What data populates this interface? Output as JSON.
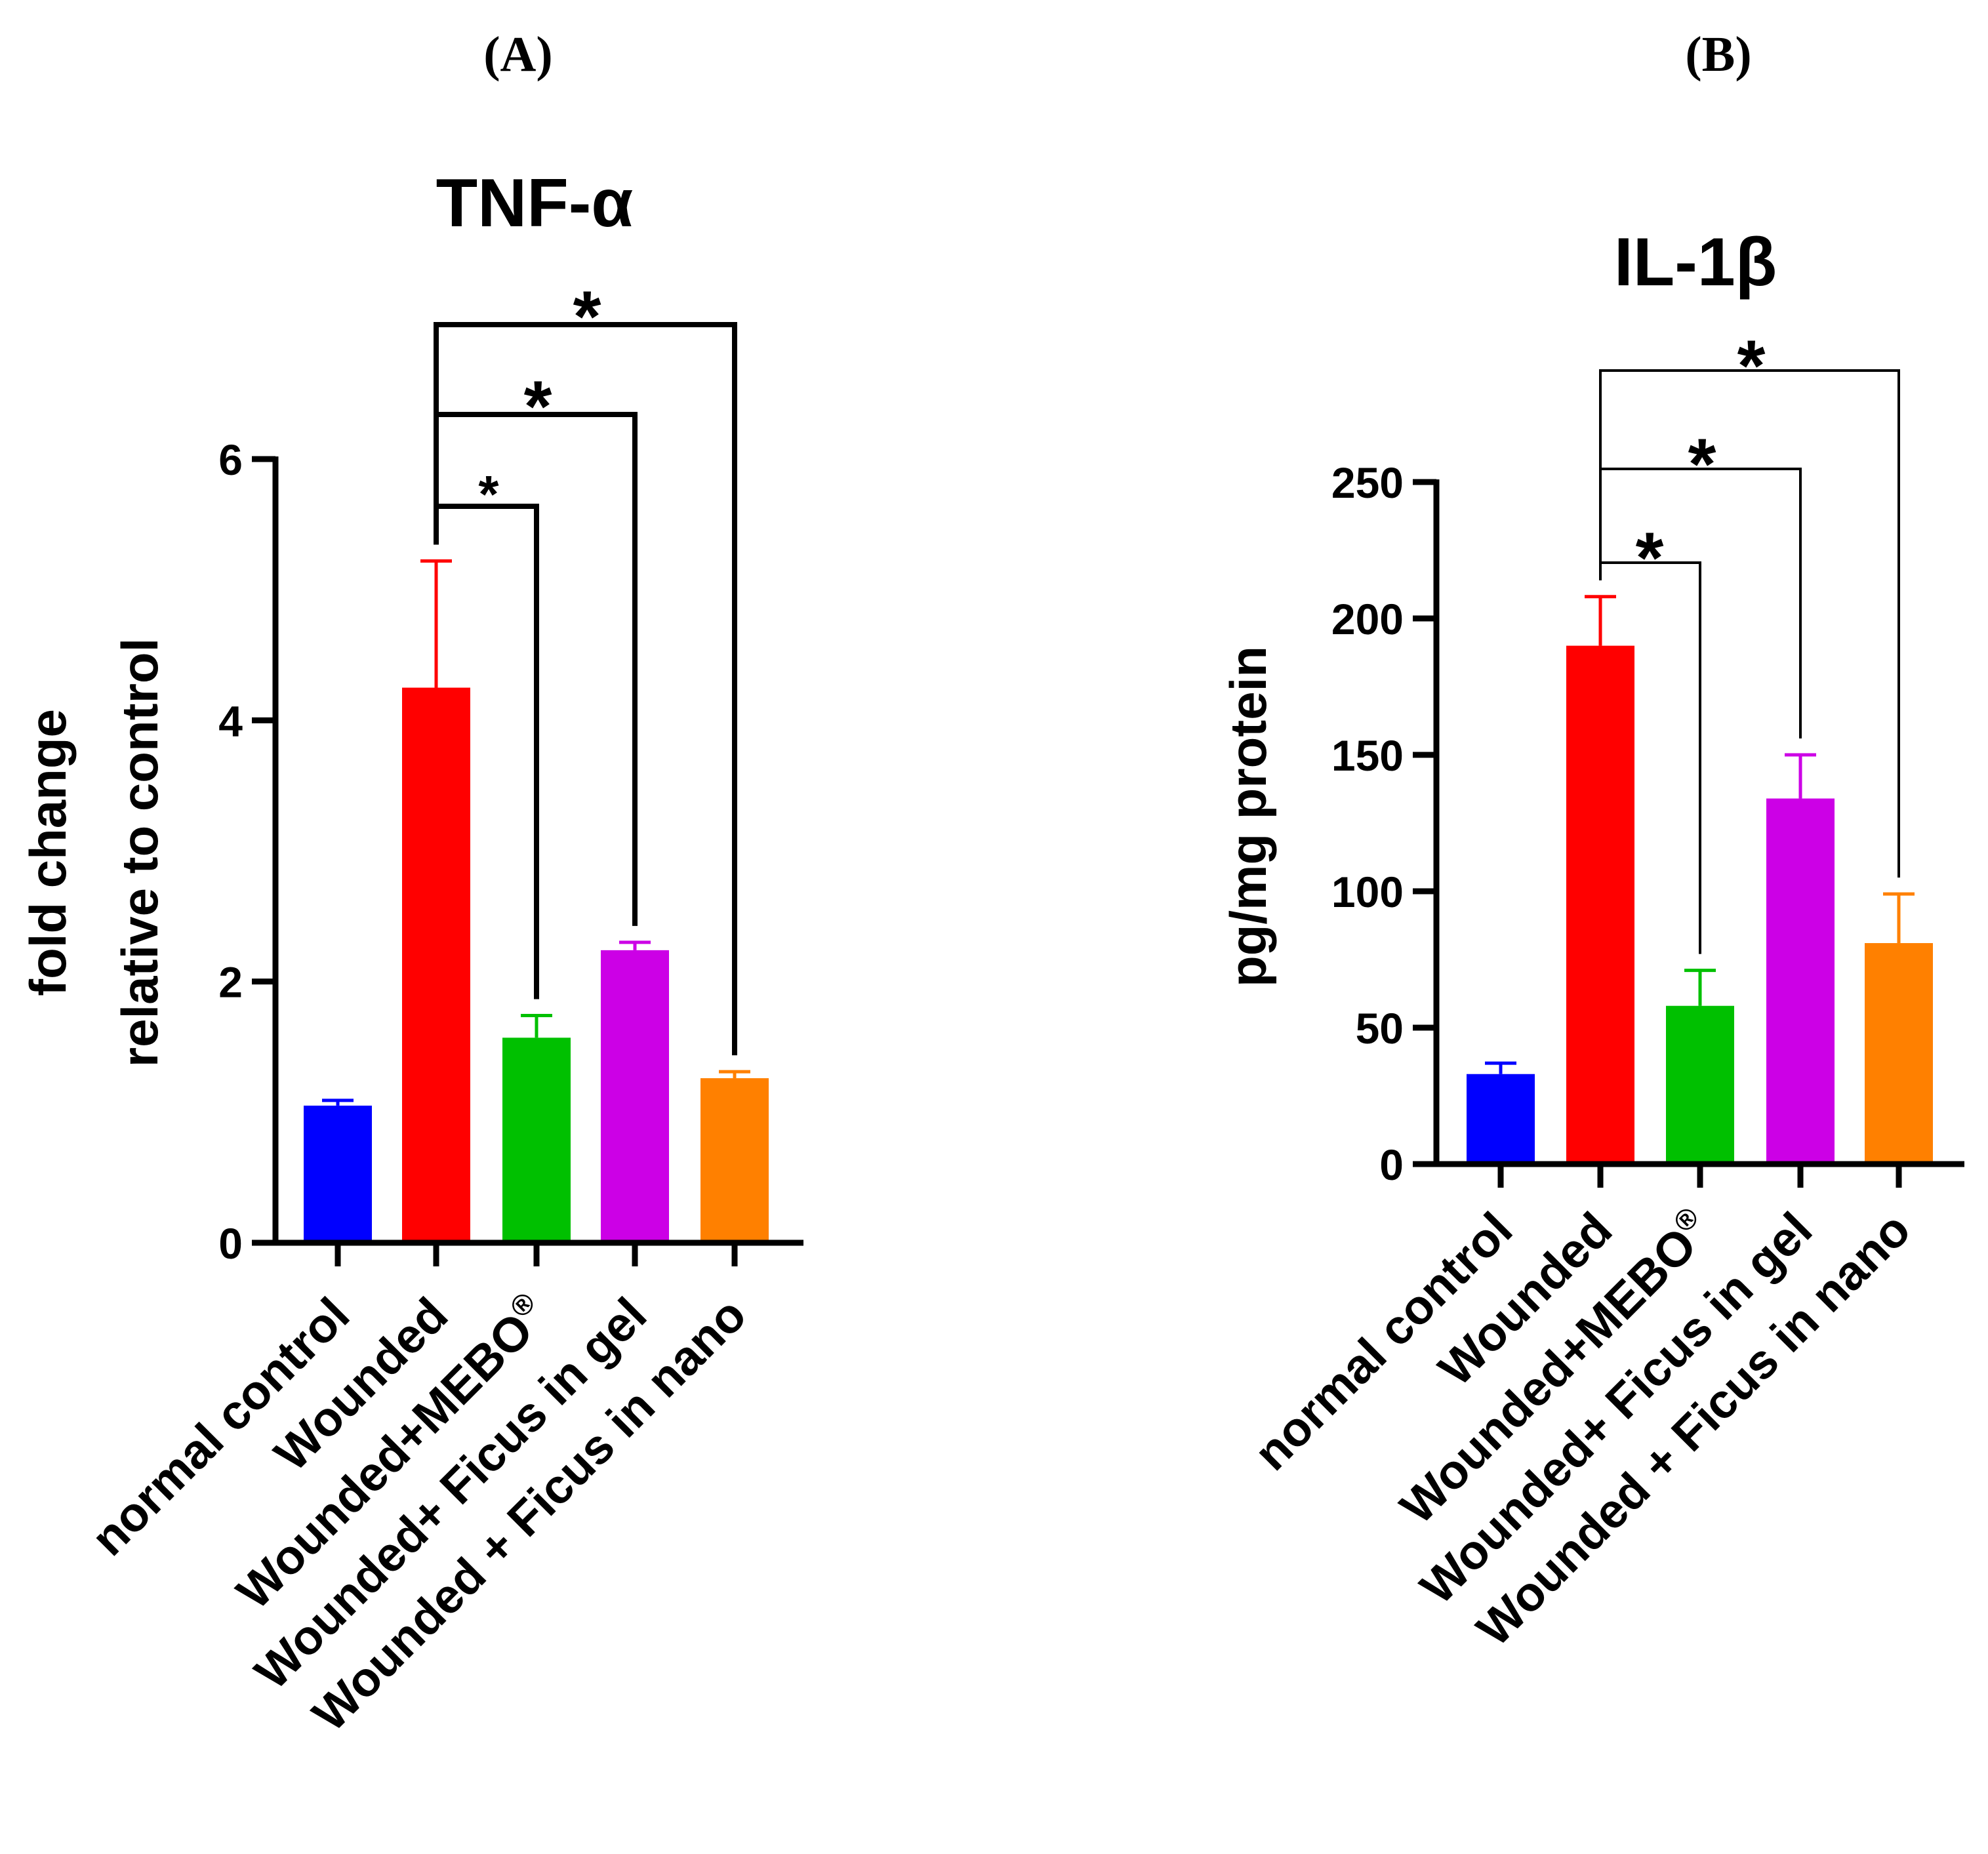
{
  "chart_data": [
    {
      "type": "bar",
      "panel_label": "(A)",
      "title": "TNF-α",
      "ylabel_lines": [
        "fold change",
        "relative to control"
      ],
      "ylim": [
        0,
        6
      ],
      "yticks": [
        0,
        2,
        4,
        6
      ],
      "ytick_labels": [
        "0",
        "2",
        "4",
        "6"
      ],
      "categories": [
        "normal control",
        "Wounded",
        "Wounded+MEBO",
        "Wounded+ Ficus in gel",
        "Wounded + Ficus in nano"
      ],
      "registered_mark": "®",
      "values": [
        1.05,
        4.25,
        1.57,
        2.24,
        1.26
      ],
      "errors": [
        0.04,
        0.97,
        0.17,
        0.06,
        0.05
      ],
      "colors": [
        "#0000ff",
        "#ff0000",
        "#00c000",
        "#cc00e6",
        "#ff8000"
      ],
      "comparisons": [
        {
          "from": 1,
          "to": 2,
          "label": "*"
        },
        {
          "from": 1,
          "to": 3,
          "label": "*"
        },
        {
          "from": 1,
          "to": 4,
          "label": "*"
        }
      ]
    },
    {
      "type": "bar",
      "panel_label": "(B)",
      "title": "IL-1β",
      "ylabel_lines": [
        "pg/mg protein"
      ],
      "ylim": [
        0,
        250
      ],
      "yticks": [
        0,
        50,
        100,
        150,
        200,
        250
      ],
      "ytick_labels": [
        "0",
        "50",
        "100",
        "150",
        "200",
        "250"
      ],
      "categories": [
        "normal control",
        "Wounded",
        "Wounded+MEBO",
        "Wounded+ Ficus in gel",
        "Wounded + Ficus in nano"
      ],
      "registered_mark": "®",
      "values": [
        33,
        190,
        58,
        134,
        81
      ],
      "errors": [
        4,
        18,
        13,
        16,
        18
      ],
      "colors": [
        "#0000ff",
        "#ff0000",
        "#00c000",
        "#cc00e6",
        "#ff8000"
      ],
      "comparisons": [
        {
          "from": 1,
          "to": 2,
          "label": "*"
        },
        {
          "from": 1,
          "to": 3,
          "label": "*"
        },
        {
          "from": 1,
          "to": 4,
          "label": "*"
        }
      ]
    }
  ]
}
